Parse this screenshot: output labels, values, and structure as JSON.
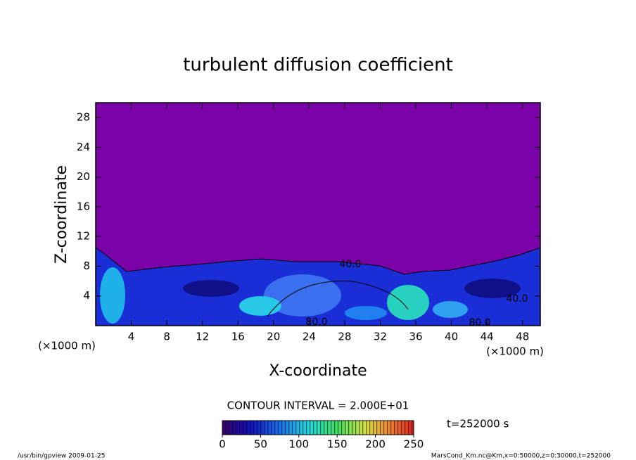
{
  "chart_data": {
    "type": "contour",
    "title": "turbulent diffusion coefficient",
    "x_label": "X-coordinate",
    "y_label": "Z-coordinate",
    "x_unit": "(×1000 m)",
    "y_unit": "(×1000 m)",
    "xlim": [
      0,
      50
    ],
    "xticks": [
      4,
      8,
      12,
      16,
      20,
      24,
      28,
      32,
      36,
      40,
      44,
      48
    ],
    "ylim": [
      0,
      30
    ],
    "yticks": [
      4,
      8,
      12,
      16,
      20,
      24,
      28
    ],
    "contour_labels": [
      "40.0",
      "40.0",
      "80.0",
      "80.0"
    ],
    "contour_interval": "CONTOUR INTERVAL = 2.000E+01",
    "time_label": "t=252000 s",
    "colorbar": {
      "clim": [
        0,
        250
      ],
      "ticks": [
        0,
        50,
        100,
        150,
        200,
        250
      ]
    },
    "footer_left": "/usr/bin/gpview  2009-01-25",
    "footer_right": "MarsCond_Km.nc@Km,x=0:50000,z=0:30000,t=252000"
  }
}
